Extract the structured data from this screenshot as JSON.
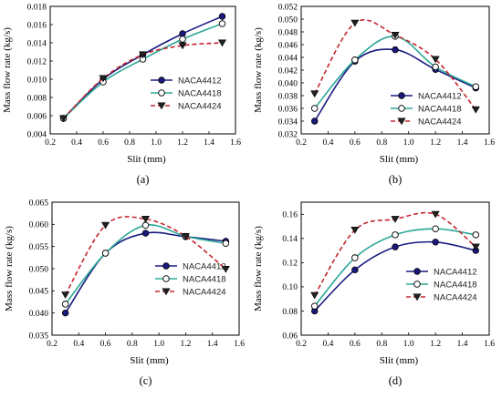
{
  "chart_data": [
    {
      "type": "line",
      "panel_label": "(a)",
      "xlabel": "Slit (mm)",
      "ylabel": "Mass flow rate (kg/s)",
      "xlim": [
        0.2,
        1.6
      ],
      "ylim": [
        0.004,
        0.018
      ],
      "xticks": [
        "0.2",
        "0.4",
        "0.6",
        "0.8",
        "1.0",
        "1.2",
        "1.4",
        "1.6"
      ],
      "yticks": [
        "0.004",
        "0.006",
        "0.008",
        "0.010",
        "0.012",
        "0.014",
        "0.016",
        "0.018"
      ],
      "legend_position": "bottom-right",
      "x": [
        0.3,
        0.6,
        0.9,
        1.2,
        1.5
      ],
      "series": [
        {
          "name": "NACA4412",
          "color": "#1a1a80",
          "marker": "filled-circle",
          "line": "solid",
          "values": [
            0.0057,
            0.01,
            0.0127,
            0.015,
            0.0169
          ]
        },
        {
          "name": "NACA4418",
          "color": "#2aa897",
          "marker": "open-circle",
          "line": "solid",
          "values": [
            0.0057,
            0.0097,
            0.0122,
            0.0144,
            0.0161
          ]
        },
        {
          "name": "NACA4424",
          "color": "#c4262e",
          "marker": "filled-triangle-down",
          "line": "dashed",
          "values": [
            0.0057,
            0.0101,
            0.0127,
            0.0137,
            0.014
          ]
        }
      ]
    },
    {
      "type": "line",
      "panel_label": "(b)",
      "xlabel": "Slit (mm)",
      "ylabel": "Mass flow rate (kg/s)",
      "xlim": [
        0.2,
        1.6
      ],
      "ylim": [
        0.032,
        0.052
      ],
      "xticks": [
        "0.2",
        "0.4",
        "0.6",
        "0.8",
        "1.0",
        "1.2",
        "1.4",
        "1.6"
      ],
      "yticks": [
        "0.032",
        "0.034",
        "0.036",
        "0.038",
        "0.040",
        "0.042",
        "0.044",
        "0.046",
        "0.048",
        "0.050",
        "0.052"
      ],
      "legend_position": "bottom-left",
      "x": [
        0.3,
        0.6,
        0.9,
        1.2,
        1.5
      ],
      "series": [
        {
          "name": "NACA4412",
          "color": "#1a1a80",
          "marker": "filled-circle",
          "line": "solid",
          "values": [
            0.034,
            0.0434,
            0.0452,
            0.0421,
            0.0392
          ]
        },
        {
          "name": "NACA4418",
          "color": "#2aa897",
          "marker": "open-circle",
          "line": "solid",
          "values": [
            0.036,
            0.0436,
            0.0473,
            0.0425,
            0.0394
          ]
        },
        {
          "name": "NACA4424",
          "color": "#c4262e",
          "marker": "filled-triangle-down",
          "line": "dashed",
          "values": [
            0.0383,
            0.0494,
            0.0475,
            0.0437,
            0.0358
          ]
        }
      ]
    },
    {
      "type": "line",
      "panel_label": "(c)",
      "xlabel": "Slit (mm)",
      "ylabel": "Mass flow rate (kg/s)",
      "xlim": [
        0.2,
        1.6
      ],
      "ylim": [
        0.035,
        0.065
      ],
      "xticks": [
        "0.2",
        "0.4",
        "0.6",
        "0.8",
        "1.0",
        "1.2",
        "1.4",
        "1.6"
      ],
      "yticks": [
        "0.035",
        "0.040",
        "0.045",
        "0.050",
        "0.055",
        "0.060",
        "0.065"
      ],
      "legend_position": "bottom-right",
      "x": [
        0.3,
        0.6,
        0.9,
        1.2,
        1.5
      ],
      "series": [
        {
          "name": "NACA4412",
          "color": "#1a1a80",
          "marker": "filled-circle",
          "line": "solid",
          "values": [
            0.04,
            0.0535,
            0.058,
            0.0572,
            0.0562
          ]
        },
        {
          "name": "NACA4418",
          "color": "#2aa897",
          "marker": "open-circle",
          "line": "solid",
          "values": [
            0.042,
            0.0535,
            0.0598,
            0.0573,
            0.0557
          ]
        },
        {
          "name": "NACA4424",
          "color": "#c4262e",
          "marker": "filled-triangle-down",
          "line": "dashed",
          "values": [
            0.0441,
            0.0598,
            0.0612,
            0.0573,
            0.0499
          ]
        }
      ]
    },
    {
      "type": "line",
      "panel_label": "(d)",
      "xlabel": "Slit (mm)",
      "ylabel": "Mass flow rate (kg/s)",
      "xlim": [
        0.2,
        1.6
      ],
      "ylim": [
        0.06,
        0.17
      ],
      "xticks": [
        "0.2",
        "0.4",
        "0.6",
        "0.8",
        "1.0",
        "1.2",
        "1.4",
        "1.6"
      ],
      "yticks": [
        "0.06",
        "0.08",
        "0.10",
        "0.12",
        "0.14",
        "0.16"
      ],
      "legend_position": "bottom-right",
      "x": [
        0.3,
        0.6,
        0.9,
        1.2,
        1.5
      ],
      "series": [
        {
          "name": "NACA4412",
          "color": "#1a1a80",
          "marker": "filled-circle",
          "line": "solid",
          "values": [
            0.08,
            0.114,
            0.133,
            0.137,
            0.13
          ]
        },
        {
          "name": "NACA4418",
          "color": "#2aa897",
          "marker": "open-circle",
          "line": "solid",
          "values": [
            0.084,
            0.124,
            0.143,
            0.148,
            0.143
          ]
        },
        {
          "name": "NACA4424",
          "color": "#c4262e",
          "marker": "filled-triangle-down",
          "line": "dashed",
          "values": [
            0.093,
            0.147,
            0.156,
            0.16,
            0.133
          ]
        }
      ]
    }
  ]
}
